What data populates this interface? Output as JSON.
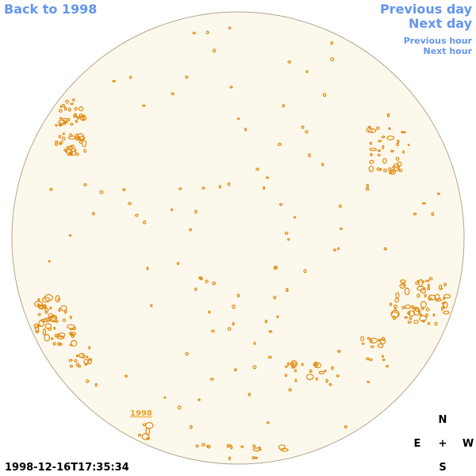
{
  "nav": {
    "back_label": "Back to 1998",
    "prev_day_label": "Previous day",
    "next_day_label": "Next day",
    "prev_hour_label": "Previous hour",
    "next_hour_label": "Next hour"
  },
  "compass": {
    "north": "N",
    "south": "S",
    "east": "E",
    "west": "W",
    "center": "+"
  },
  "timestamp": "1998-12-16T17:35:34",
  "region_label": "1998",
  "colors": {
    "link": "#6495ed",
    "disk_fill": "#fdf8ec",
    "disk_stroke": "#b0a890",
    "region_stroke": "#e08a10",
    "region_label": "#f0a020"
  }
}
